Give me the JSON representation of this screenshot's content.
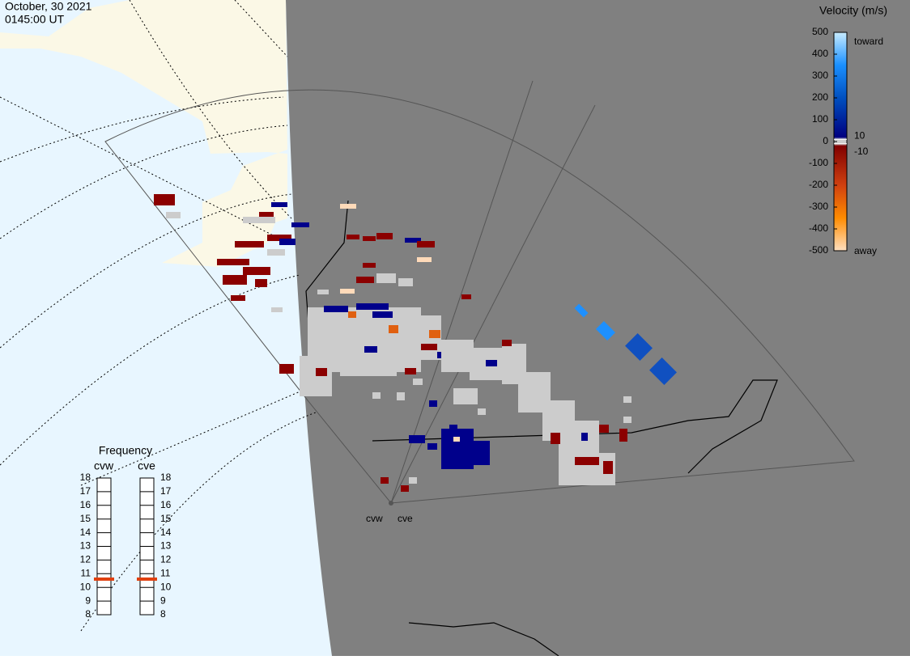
{
  "header": {
    "date": "October, 30 2021",
    "time": "0145:00 UT"
  },
  "colorbar": {
    "title": "Velocity (m/s)",
    "lim": [
      -500,
      500
    ],
    "ticks": [
      500,
      400,
      300,
      200,
      100,
      0,
      -100,
      -200,
      -300,
      -400,
      -500
    ],
    "inner_ticks": [
      10,
      -10
    ],
    "toward": "toward",
    "away": "away"
  },
  "frequency": {
    "title": "Frequency",
    "lim": [
      8,
      18
    ],
    "ticks": [
      8,
      9,
      10,
      11,
      12,
      13,
      14,
      15,
      16,
      17,
      18
    ],
    "radars": [
      {
        "name": "cvw",
        "value": 10.6
      },
      {
        "name": "cve",
        "value": 10.6
      }
    ]
  },
  "map": {
    "radar_labels": [
      "cvw",
      "cve"
    ]
  }
}
